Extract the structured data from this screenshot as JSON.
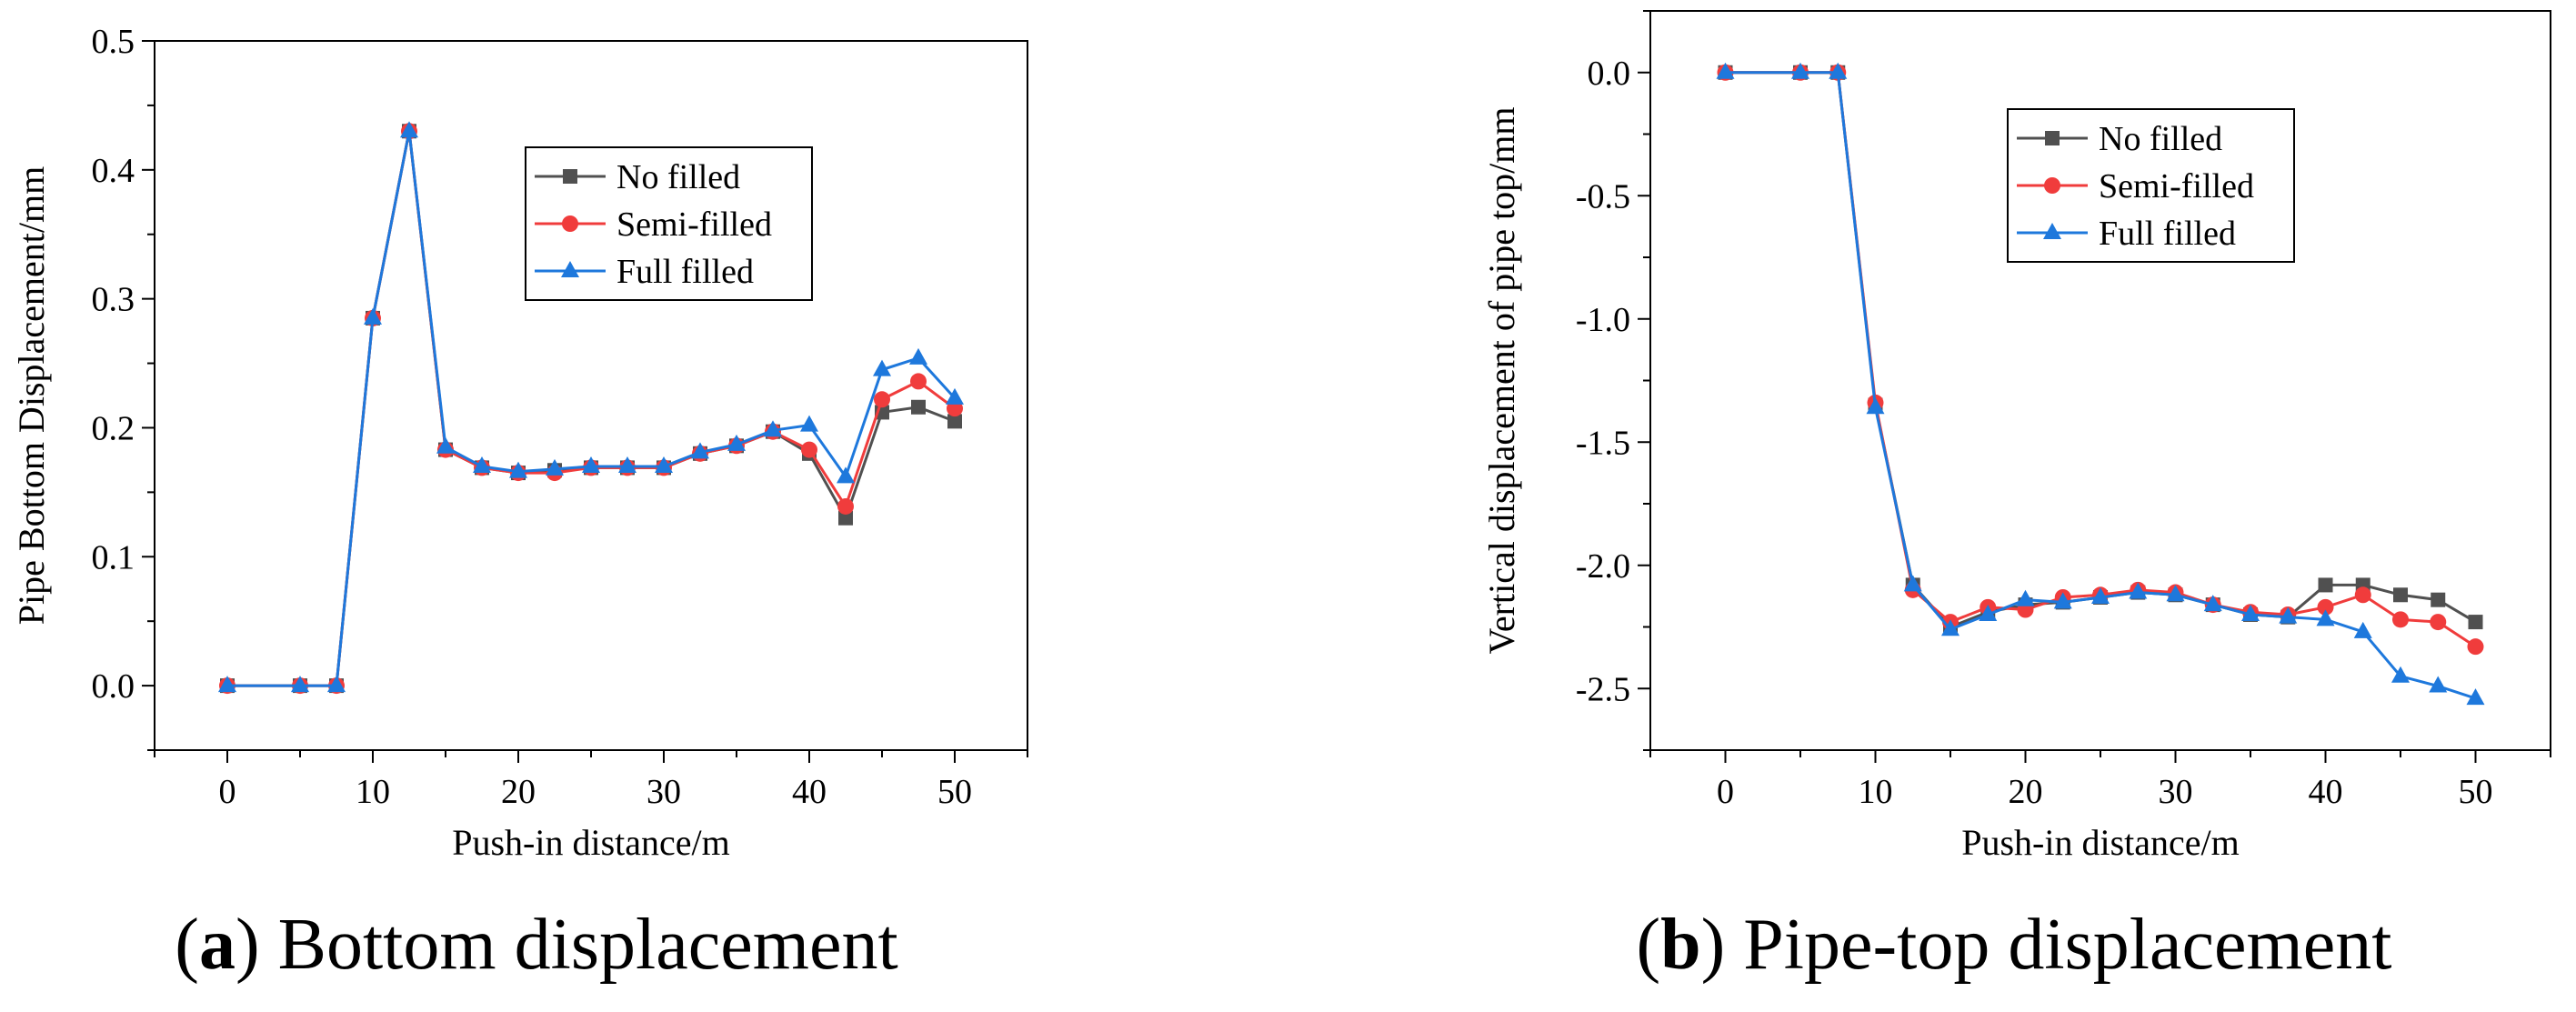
{
  "chart_data": [
    {
      "type": "line",
      "caption": {
        "letter": "a",
        "text": "Bottom displacement"
      },
      "xlabel": "Push-in distance/m",
      "ylabel": "Pipe Bottom Displacement/mm",
      "xlim": [
        -5,
        55
      ],
      "ylim": [
        -0.05,
        0.5
      ],
      "xticks": [
        0,
        10,
        20,
        30,
        40,
        50
      ],
      "xtick_labels": [
        "0",
        "10",
        "20",
        "30",
        "40",
        "50"
      ],
      "yticks": [
        0.0,
        0.1,
        0.2,
        0.3,
        0.4,
        0.5
      ],
      "ytick_labels": [
        "0.0",
        "0.1",
        "0.2",
        "0.3",
        "0.4",
        "0.5"
      ],
      "x": [
        0,
        5,
        7.5,
        10,
        12.5,
        15,
        17.5,
        20,
        22.5,
        25,
        27.5,
        30,
        32.5,
        35,
        37.5,
        40,
        42.5,
        45,
        47.5,
        50
      ],
      "legend_position": "top-right",
      "series": [
        {
          "name": "No filled",
          "color": "#505050",
          "marker": "square",
          "values": [
            0,
            0,
            0,
            0.285,
            0.43,
            0.183,
            0.169,
            0.165,
            0.167,
            0.169,
            0.169,
            0.169,
            0.18,
            0.186,
            0.197,
            0.18,
            0.13,
            0.212,
            0.216,
            0.205
          ]
        },
        {
          "name": "Semi-filled",
          "color": "#f03c3c",
          "marker": "circle",
          "values": [
            0,
            0,
            0,
            0.285,
            0.43,
            0.183,
            0.169,
            0.165,
            0.165,
            0.169,
            0.169,
            0.169,
            0.18,
            0.186,
            0.197,
            0.183,
            0.139,
            0.222,
            0.236,
            0.215
          ]
        },
        {
          "name": "Full filled",
          "color": "#1e78dc",
          "marker": "triangle",
          "values": [
            0,
            0,
            0,
            0.285,
            0.43,
            0.185,
            0.17,
            0.166,
            0.168,
            0.17,
            0.17,
            0.17,
            0.181,
            0.187,
            0.198,
            0.202,
            0.162,
            0.245,
            0.254,
            0.223
          ]
        }
      ]
    },
    {
      "type": "line",
      "caption": {
        "letter": "b",
        "text": "Pipe-top displacement"
      },
      "xlabel": "Push-in distance/m",
      "ylabel": "Vertical displacement of pipe top/mm",
      "xlim": [
        -5,
        55
      ],
      "ylim": [
        -2.75,
        0.25
      ],
      "xticks": [
        0,
        10,
        20,
        30,
        40,
        50
      ],
      "xtick_labels": [
        "0",
        "10",
        "20",
        "30",
        "40",
        "50"
      ],
      "yticks": [
        0.0,
        -0.5,
        -1.0,
        -1.5,
        -2.0,
        -2.5
      ],
      "ytick_labels": [
        "0.0",
        "-0.5",
        "-1.0",
        "-1.5",
        "-2.0",
        "-2.5"
      ],
      "x": [
        0,
        5,
        7.5,
        10,
        12.5,
        15,
        17.5,
        20,
        22.5,
        25,
        27.5,
        30,
        32.5,
        35,
        37.5,
        40,
        42.5,
        45,
        47.5,
        50
      ],
      "legend_position": "top-right",
      "series": [
        {
          "name": "No filled",
          "color": "#505050",
          "marker": "square",
          "values": [
            0,
            0,
            0,
            -1.35,
            -2.08,
            -2.25,
            -2.19,
            -2.16,
            -2.15,
            -2.13,
            -2.11,
            -2.12,
            -2.16,
            -2.2,
            -2.21,
            -2.08,
            -2.08,
            -2.12,
            -2.14,
            -2.23
          ]
        },
        {
          "name": "Semi-filled",
          "color": "#f03c3c",
          "marker": "circle",
          "values": [
            0,
            0,
            0,
            -1.34,
            -2.1,
            -2.23,
            -2.17,
            -2.18,
            -2.13,
            -2.12,
            -2.1,
            -2.11,
            -2.16,
            -2.19,
            -2.2,
            -2.17,
            -2.12,
            -2.22,
            -2.23,
            -2.33
          ]
        },
        {
          "name": "Full filled",
          "color": "#1e78dc",
          "marker": "triangle",
          "values": [
            0,
            0,
            0,
            -1.36,
            -2.08,
            -2.26,
            -2.2,
            -2.14,
            -2.15,
            -2.13,
            -2.11,
            -2.12,
            -2.16,
            -2.2,
            -2.21,
            -2.22,
            -2.27,
            -2.45,
            -2.49,
            -2.54
          ]
        }
      ]
    }
  ]
}
